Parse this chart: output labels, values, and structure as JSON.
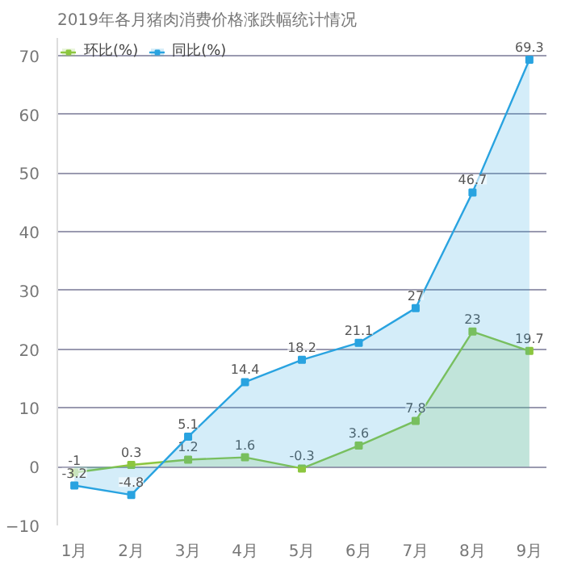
{
  "chart_data": {
    "type": "area",
    "title": "2019年各月猪肉消费价格涨跌幅统计情况",
    "categories": [
      "1月",
      "2月",
      "3月",
      "4月",
      "5月",
      "6月",
      "7月",
      "8月",
      "9月"
    ],
    "series": [
      {
        "name": "环比(%)",
        "color": "#8cc63f",
        "values": [
          -1,
          0.3,
          1.2,
          1.6,
          -0.3,
          3.6,
          7.8,
          23,
          19.7
        ]
      },
      {
        "name": "同比(%)",
        "color": "#29a3e0",
        "values": [
          -3.2,
          -4.8,
          5.1,
          14.4,
          18.2,
          21.1,
          27,
          46.7,
          69.3
        ]
      }
    ],
    "ylim": [
      -10,
      73
    ],
    "yticks": [
      -10,
      0,
      10,
      20,
      30,
      40,
      50,
      60,
      70
    ],
    "grid": "y",
    "legend": "top left",
    "data_labels": true,
    "marker": "square"
  }
}
